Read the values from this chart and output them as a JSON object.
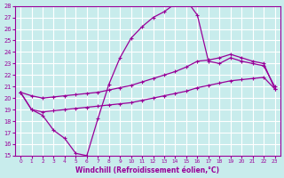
{
  "xlabel": "Windchill (Refroidissement éolien,°C)",
  "ylabel": "",
  "bg_color": "#c8ecec",
  "grid_color": "#ffffff",
  "line_color": "#990099",
  "xlim": [
    -0.5,
    23.5
  ],
  "ylim": [
    15,
    28
  ],
  "yticks": [
    15,
    16,
    17,
    18,
    19,
    20,
    21,
    22,
    23,
    24,
    25,
    26,
    27,
    28
  ],
  "xticks": [
    0,
    1,
    2,
    3,
    4,
    5,
    6,
    7,
    8,
    9,
    10,
    11,
    12,
    13,
    14,
    15,
    16,
    17,
    18,
    19,
    20,
    21,
    22,
    23
  ],
  "series": [
    {
      "x": [
        0,
        1,
        2,
        3,
        4,
        5,
        6,
        7,
        8,
        9,
        10,
        11,
        12,
        13,
        14,
        15,
        16,
        17,
        18,
        19,
        20,
        21,
        22,
        23
      ],
      "y": [
        20.5,
        19.0,
        18.5,
        17.2,
        16.5,
        15.2,
        15.0,
        18.2,
        21.2,
        23.5,
        25.2,
        26.2,
        27.0,
        27.5,
        28.2,
        28.5,
        27.2,
        23.2,
        23.0,
        23.5,
        23.2,
        23.0,
        22.8,
        21.0
      ]
    },
    {
      "x": [
        0,
        1,
        2,
        3,
        4,
        5,
        6,
        7,
        8,
        9,
        10,
        11,
        12,
        13,
        14,
        15,
        16,
        17,
        18,
        19,
        20,
        21,
        22,
        23
      ],
      "y": [
        20.5,
        20.2,
        20.0,
        20.1,
        20.2,
        20.3,
        20.4,
        20.5,
        20.7,
        20.9,
        21.1,
        21.4,
        21.7,
        22.0,
        22.3,
        22.7,
        23.2,
        23.3,
        23.5,
        23.8,
        23.5,
        23.2,
        23.0,
        20.8
      ]
    },
    {
      "x": [
        0,
        1,
        2,
        3,
        4,
        5,
        6,
        7,
        8,
        9,
        10,
        11,
        12,
        13,
        14,
        15,
        16,
        17,
        18,
        19,
        20,
        21,
        22,
        23
      ],
      "y": [
        20.5,
        19.0,
        18.8,
        18.9,
        19.0,
        19.1,
        19.2,
        19.3,
        19.4,
        19.5,
        19.6,
        19.8,
        20.0,
        20.2,
        20.4,
        20.6,
        20.9,
        21.1,
        21.3,
        21.5,
        21.6,
        21.7,
        21.8,
        20.8
      ]
    }
  ]
}
